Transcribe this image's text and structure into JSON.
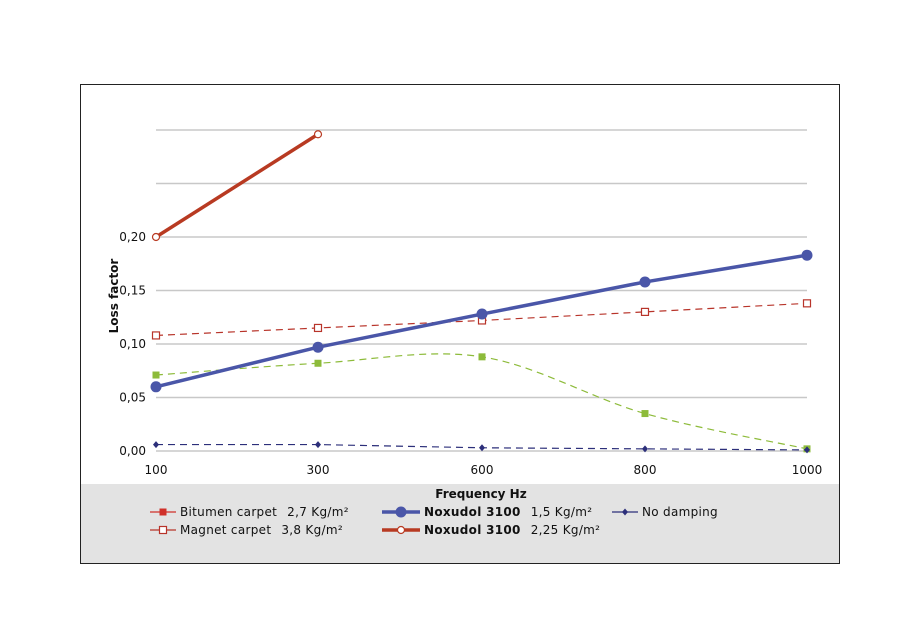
{
  "chart_data": {
    "type": "line",
    "xlabel": "Frequency Hz",
    "ylabel": "Loss factor",
    "categories": [
      "100",
      "300",
      "600",
      "800",
      "1000"
    ],
    "ylim": [
      0,
      0.3
    ],
    "yticks": [
      "0,00",
      "0,05",
      "0,10",
      "0,15",
      "0,20"
    ],
    "ytick_values": [
      0,
      0.05,
      0.1,
      0.15,
      0.2
    ],
    "gridlines": [
      0,
      0.05,
      0.1,
      0.15,
      0.2,
      0.25,
      0.3
    ],
    "legend_position": "bottom",
    "series": [
      {
        "name": "Bitumen carpet",
        "spec": "2,7 Kg/m²",
        "color": "#8dbb3a",
        "legend_color": "#d0302a",
        "marker": "square-filled",
        "dashed": true,
        "smooth": true,
        "bold": false,
        "values": [
          0.071,
          0.082,
          0.088,
          0.035,
          0.002
        ]
      },
      {
        "name": "Magnet carpet",
        "spec": "3,8 Kg/m²",
        "color": "#b8342a",
        "legend_color": "#b8342a",
        "marker": "square-open",
        "dashed": true,
        "smooth": false,
        "bold": false,
        "values": [
          0.108,
          0.115,
          0.122,
          0.13,
          0.138
        ]
      },
      {
        "name": "Noxudol 3100",
        "spec": "1,5 Kg/m²",
        "color": "#4a56a8",
        "legend_color": "#4a56a8",
        "marker": "circle-filled",
        "dashed": false,
        "smooth": false,
        "bold": true,
        "values": [
          0.06,
          0.097,
          0.128,
          0.158,
          0.183
        ]
      },
      {
        "name": "Noxudol 3100",
        "spec": "2,25 Kg/m²",
        "color": "#b83a22",
        "legend_color": "#b83a22",
        "marker": "circle-open",
        "dashed": false,
        "smooth": false,
        "bold": true,
        "values": [
          0.2,
          0.296,
          null,
          null,
          null
        ]
      },
      {
        "name": "No damping",
        "spec": "",
        "color": "#2c2f7a",
        "legend_color": "#2c2f7a",
        "marker": "diamond",
        "dashed": true,
        "smooth": false,
        "bold": false,
        "values": [
          0.006,
          0.006,
          0.003,
          0.002,
          0.001
        ]
      }
    ]
  }
}
